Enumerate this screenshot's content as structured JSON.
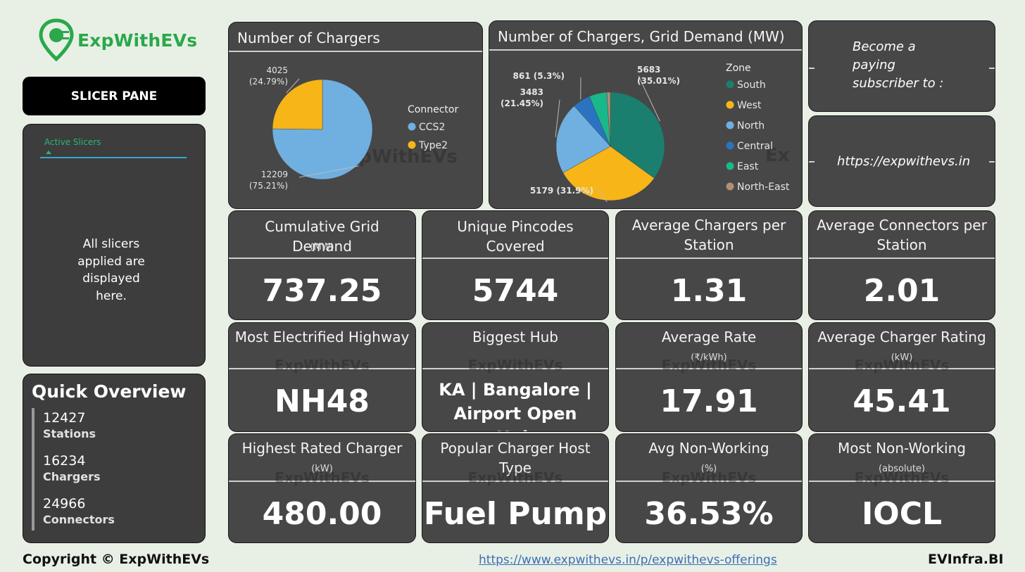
{
  "brand": {
    "name": "ExpWithEVs",
    "color": "#2aa84a"
  },
  "slicer_pane": {
    "title": "SLICER PANE",
    "active_label": "Active Slicers",
    "message": "All slicers applied are displayed here."
  },
  "quick_overview": {
    "title": "Quick Overview",
    "items": [
      {
        "value": "12427",
        "label": "Stations"
      },
      {
        "value": "16234",
        "label": "Chargers"
      },
      {
        "value": "24966",
        "label": "Connectors"
      }
    ]
  },
  "chart_data": [
    {
      "type": "pie",
      "title": "Number of Chargers",
      "legend_title": "Connector",
      "slices": [
        {
          "name": "CCS2",
          "value": 12209,
          "percent": 75.21,
          "color": "#6fb0e0",
          "label_value": "12209",
          "label_pct": "(75.21%)"
        },
        {
          "name": "Type2",
          "value": 4025,
          "percent": 24.79,
          "color": "#f7b518",
          "label_value": "4025",
          "label_pct": "(24.79%)"
        }
      ]
    },
    {
      "type": "pie",
      "title": "Number of Chargers, Grid Demand (MW)",
      "legend_title": "Zone",
      "slices": [
        {
          "name": "South",
          "value": 5683,
          "percent": 35.01,
          "color": "#1a7f6e",
          "label_value": "5683",
          "label_pct": "(35.01%)"
        },
        {
          "name": "West",
          "value": 5179,
          "percent": 31.9,
          "color": "#f7b518",
          "label_value": "5179",
          "label_pct": "(31.9%)"
        },
        {
          "name": "North",
          "value": 3483,
          "percent": 21.45,
          "color": "#6fb0e0",
          "label_value": "3483",
          "label_pct": "(21.45%)"
        },
        {
          "name": "Central",
          "value": 861,
          "percent": 5.3,
          "color": "#2a73c0",
          "label_value": "861",
          "label_pct": "(5.3%)"
        },
        {
          "name": "East",
          "value": 856,
          "percent": 5.27,
          "color": "#19b88a",
          "label_value": "",
          "label_pct": ""
        },
        {
          "name": "North-East",
          "value": 172,
          "percent": 1.06,
          "color": "#b08f72",
          "label_value": "",
          "label_pct": ""
        }
      ]
    }
  ],
  "subscribe": {
    "line1": "Become a",
    "line2": "paying",
    "line3": "subscriber to :",
    "url": "https://expwithevs.in"
  },
  "kpis": [
    {
      "title": "Cumulative Grid Demand",
      "sub": "(MW)",
      "value": "737.25"
    },
    {
      "title": "Unique Pincodes Covered",
      "sub": "",
      "value": "5744"
    },
    {
      "title": "Average Chargers per Station",
      "sub": "",
      "value": "1.31"
    },
    {
      "title": "Average Connectors per Station",
      "sub": "",
      "value": "2.01"
    },
    {
      "title": "Most Electrified Highway",
      "sub": "",
      "value": "NH48"
    },
    {
      "title": "Biggest Hub",
      "sub": "",
      "value": "KA | Bangalore | Airport Open Hub"
    },
    {
      "title": "Average Rate",
      "sub": "(₹/kWh)",
      "value": "17.91"
    },
    {
      "title": "Average Charger Rating",
      "sub": "(kW)",
      "value": "45.41"
    },
    {
      "title": "Highest Rated Charger",
      "sub": "(kW)",
      "value": "480.00"
    },
    {
      "title": "Popular Charger Host Type",
      "sub": "",
      "value": "Fuel Pump"
    },
    {
      "title": "Avg Non-Working",
      "sub": "(%)",
      "value": "36.53%"
    },
    {
      "title": "Most Non-Working",
      "sub": "(absolute)",
      "value": "IOCL"
    }
  ],
  "footer": {
    "copyright": "Copyright © ExpWithEVs",
    "link": "https://www.expwithevs.in/p/expwithevs-offerings",
    "right": "EVInfra.BI"
  }
}
